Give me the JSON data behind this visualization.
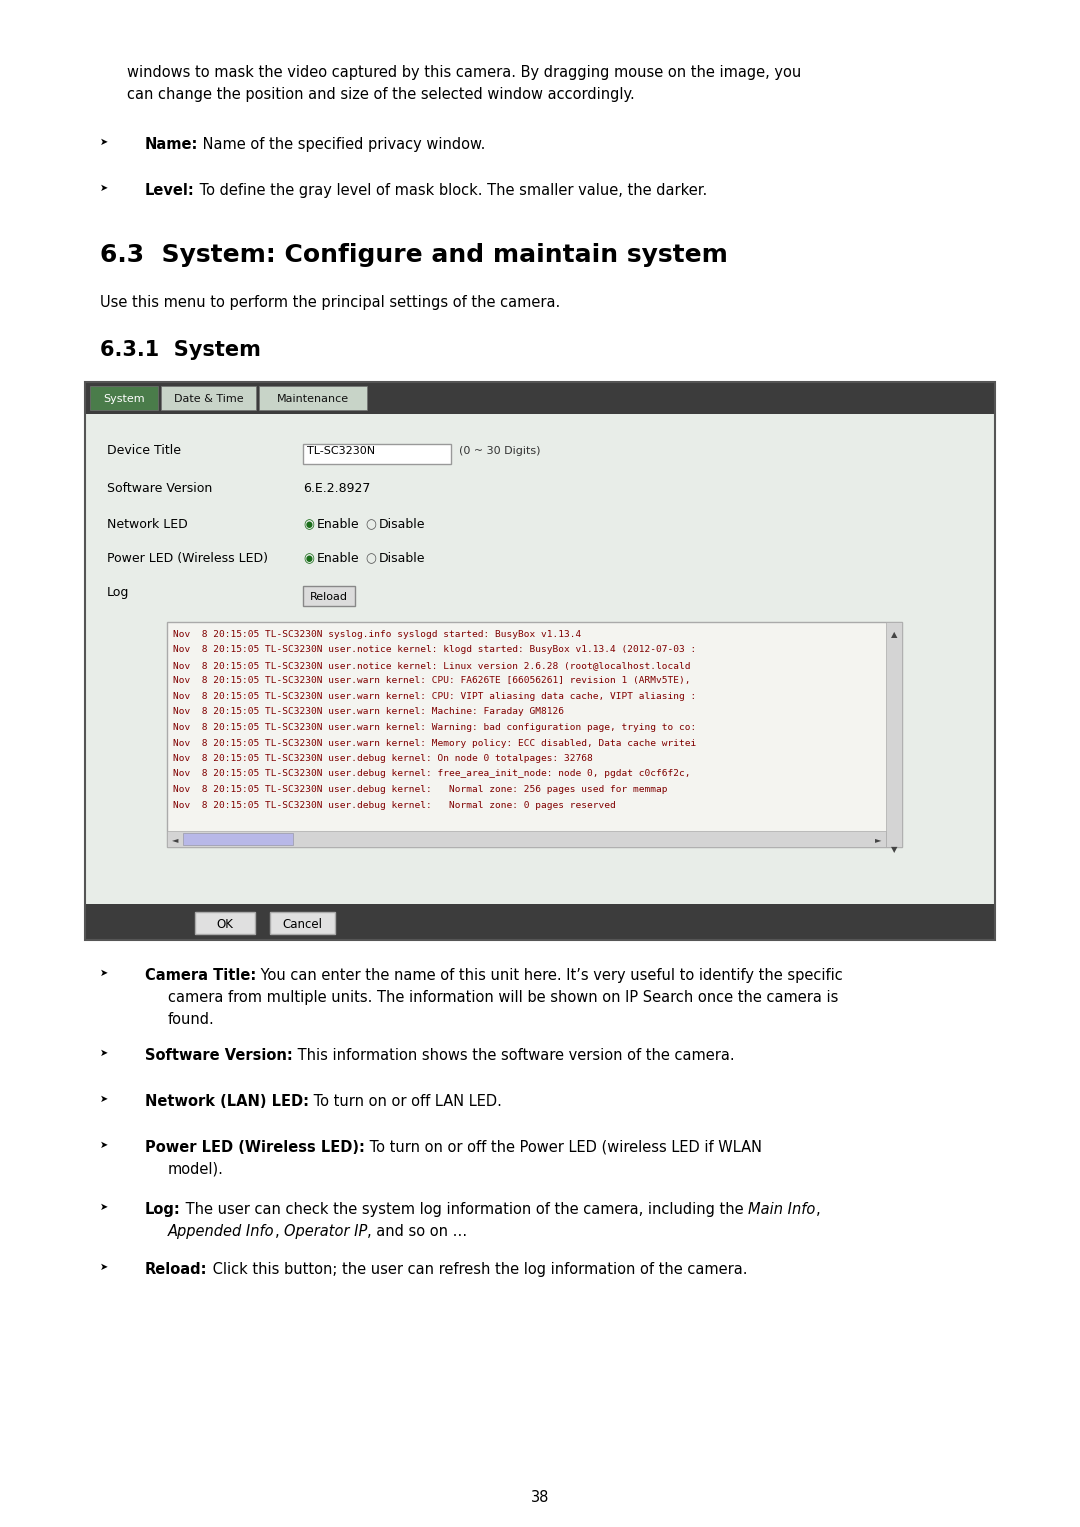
{
  "bg_color": "#ffffff",
  "page_number": "38",
  "intro_text_line1": "windows to mask the video captured by this camera. By dragging mouse on the image, you",
  "intro_text_line2": "can change the position and size of the selected window accordingly.",
  "bullet1_bold": "Name:",
  "bullet1_text": " Name of the specified privacy window.",
  "bullet2_bold": "Level:",
  "bullet2_text": " To define the gray level of mask block. The smaller value, the darker.",
  "section_title": "6.3  System: Configure and maintain system",
  "section_intro": "Use this menu to perform the principal settings of the camera.",
  "subsection_title": "6.3.1  System",
  "ui_header_bg": "#3c3c3c",
  "ui_body_bg": "#e8ede8",
  "ui_tab_active_bg": "#4a7c4a",
  "ui_tab_inactive_bg": "#c8d4c8",
  "ui_tabs": [
    "System",
    "Date & Time",
    "Maintenance"
  ],
  "ui_tab_active_text": "#ffffff",
  "ui_tab_inactive_text": "#111111",
  "ui_field_device_title_label": "Device Title",
  "ui_field_device_title_value": "TL-SC3230N",
  "ui_field_device_title_hint": "(0 ~ 30 Digits)",
  "ui_field_sw_label": "Software Version",
  "ui_field_sw_value": "6.E.2.8927",
  "ui_field_net_label": "Network LED",
  "ui_field_power_label": "Power LED (Wireless LED)",
  "ui_field_log_label": "Log",
  "ui_field_log_btn": "Reload",
  "log_lines": [
    "Nov  8 20:15:05 TL-SC3230N syslog.info syslogd started: BusyBox v1.13.4",
    "Nov  8 20:15:05 TL-SC3230N user.notice kernel: klogd started: BusyBox v1.13.4 (2012-07-03 :",
    "Nov  8 20:15:05 TL-SC3230N user.notice kernel: Linux version 2.6.28 (root@localhost.locald",
    "Nov  8 20:15:05 TL-SC3230N user.warn kernel: CPU: FA626TE [66056261] revision 1 (ARMv5TE),",
    "Nov  8 20:15:05 TL-SC3230N user.warn kernel: CPU: VIPT aliasing data cache, VIPT aliasing :",
    "Nov  8 20:15:05 TL-SC3230N user.warn kernel: Machine: Faraday GM8126",
    "Nov  8 20:15:05 TL-SC3230N user.warn kernel: Warning: bad configuration page, trying to co:",
    "Nov  8 20:15:05 TL-SC3230N user.warn kernel: Memory policy: ECC disabled, Data cache writei",
    "Nov  8 20:15:05 TL-SC3230N user.debug kernel: On node 0 totalpages: 32768",
    "Nov  8 20:15:05 TL-SC3230N user.debug kernel: free_area_init_node: node 0, pgdat c0cf6f2c,",
    "Nov  8 20:15:05 TL-SC3230N user.debug kernel:   Normal zone: 256 pages used for memmap",
    "Nov  8 20:15:05 TL-SC3230N user.debug kernel:   Normal zone: 0 pages reserved"
  ],
  "ui_btn_ok": "OK",
  "ui_btn_cancel": "Cancel",
  "b3_bold": "Camera Title:",
  "b3_normal": " You can enter the name of this unit here. It’s very useful to identify the specific",
  "b3_line2": "camera from multiple units. The information will be shown on IP Search once the camera is",
  "b3_line3": "found.",
  "b4_bold": "Software Version:",
  "b4_normal": " This information shows the software version of the camera.",
  "b5_bold": "Network (LAN) LED:",
  "b5_normal": " To turn on or off LAN LED.",
  "b6_bold": "Power LED (Wireless LED):",
  "b6_normal": " To turn on or off the Power LED (wireless LED if WLAN",
  "b6_line2": "model).",
  "b7_bold": "Log:",
  "b7_normal": " The user can check the system log information of the camera, including the ",
  "b7_italic1": "Main Info",
  "b7_comma": ",",
  "b7_line2_italic1": "Appended Info",
  "b7_line2_sep": ", ",
  "b7_line2_italic2": "Operator IP",
  "b7_line2_end": ", and so on …",
  "b8_bold": "Reload:",
  "b8_normal": " Click this button; the user can refresh the log information of the camera."
}
